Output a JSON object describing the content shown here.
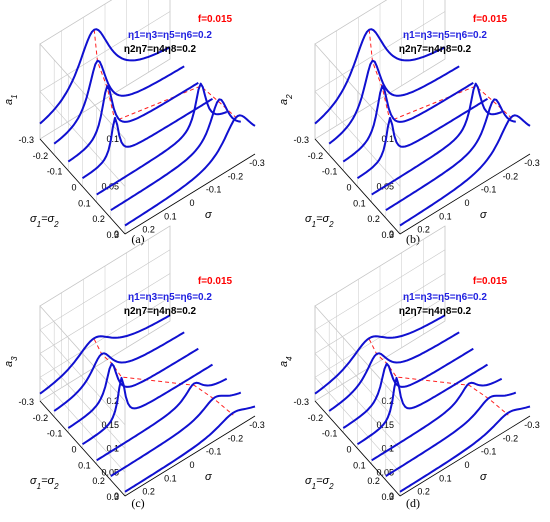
{
  "colors": {
    "curve": "#1010d0",
    "ridge": "#ff2020",
    "grid": "#c8c8c8",
    "ann_f": "#ff0000",
    "ann_eta_odd": "#2020e0",
    "ann_eta_even": "#000000"
  },
  "chart_data": [
    {
      "type": "line",
      "panel_caption": "(a)",
      "zlabel": "a",
      "zlabel_sub": "1",
      "zlim": [
        0,
        0.1
      ],
      "z_ticks": [
        "0",
        "0.05",
        "0.1"
      ],
      "xlabel_parts": [
        "σ",
        "1",
        "=σ",
        "2"
      ],
      "x_ticks": [
        "-0.3",
        "-0.2",
        "-0.1",
        "0",
        "0.1",
        "0.2",
        "0.3"
      ],
      "ylabel": "σ",
      "y_ticks": [
        "-0.3",
        "-0.2",
        "-0.1",
        "0",
        "0.1",
        "0.2"
      ],
      "ann_f": "f=0.015",
      "ann_eta_odd": "η1=η3=η5=η6=0.2",
      "ann_eta_even": "η2η7=η4η8=0.2",
      "series": [
        {
          "sigma12": -0.3,
          "peak_sigma": 0.05,
          "peak_a": 0.08,
          "width": 0.09
        },
        {
          "sigma12": -0.2,
          "peak_sigma": 0.1,
          "peak_a": 0.07,
          "width": 0.05
        },
        {
          "sigma12": -0.1,
          "peak_sigma": 0.12,
          "peak_a": 0.062,
          "width": 0.03
        },
        {
          "sigma12": 0.0,
          "peak_sigma": 0.15,
          "peak_a": 0.048,
          "width": 0.02
        },
        {
          "sigma12": 0.1,
          "peak_sigma": -0.18,
          "peak_a": 0.055,
          "width": 0.03
        },
        {
          "sigma12": 0.2,
          "peak_sigma": -0.2,
          "peak_a": 0.052,
          "width": 0.05
        },
        {
          "sigma12": 0.3,
          "peak_sigma": -0.22,
          "peak_a": 0.048,
          "width": 0.08
        }
      ]
    },
    {
      "type": "line",
      "panel_caption": "(b)",
      "zlabel": "a",
      "zlabel_sub": "2",
      "zlim": [
        0,
        0.1
      ],
      "z_ticks": [
        "0",
        "0.05",
        "0.1"
      ],
      "xlabel_parts": [
        "σ",
        "1",
        "=σ",
        "2"
      ],
      "x_ticks": [
        "-0.3",
        "-0.2",
        "-0.1",
        "0",
        "0.1",
        "0.2",
        "0.3"
      ],
      "ylabel": "σ",
      "y_ticks": [
        "-0.3",
        "-0.2",
        "-0.1",
        "0",
        "0.1",
        "0.2"
      ],
      "ann_f": "f=0.015",
      "ann_eta_odd": "η1=η3=η5=η6=0.2",
      "ann_eta_even": "η2η7=η4η8=0.2",
      "series": [
        {
          "sigma12": -0.3,
          "peak_sigma": 0.05,
          "peak_a": 0.08,
          "width": 0.09
        },
        {
          "sigma12": -0.2,
          "peak_sigma": 0.1,
          "peak_a": 0.07,
          "width": 0.05
        },
        {
          "sigma12": -0.1,
          "peak_sigma": 0.12,
          "peak_a": 0.062,
          "width": 0.03
        },
        {
          "sigma12": 0.0,
          "peak_sigma": 0.15,
          "peak_a": 0.048,
          "width": 0.02
        },
        {
          "sigma12": 0.1,
          "peak_sigma": -0.18,
          "peak_a": 0.055,
          "width": 0.03
        },
        {
          "sigma12": 0.2,
          "peak_sigma": -0.2,
          "peak_a": 0.052,
          "width": 0.05
        },
        {
          "sigma12": 0.3,
          "peak_sigma": -0.22,
          "peak_a": 0.048,
          "width": 0.08
        }
      ]
    },
    {
      "type": "line",
      "panel_caption": "(c)",
      "zlabel": "a",
      "zlabel_sub": "3",
      "zlim": [
        0,
        0.2
      ],
      "z_ticks": [
        "0",
        "0.05",
        "0.1",
        "0.15",
        "0.2"
      ],
      "xlabel_parts": [
        "σ",
        "1",
        "=σ",
        "2"
      ],
      "x_ticks": [
        "-0.3",
        "-0.2",
        "-0.1",
        "0",
        "0.1",
        "0.2",
        "0.3"
      ],
      "ylabel": "σ",
      "y_ticks": [
        "-0.3",
        "-0.2",
        "-0.1",
        "0",
        "0.1",
        "0.2"
      ],
      "ann_f": "f=0.015",
      "ann_eta_odd": "η1=η3=η5=η6=0.2",
      "ann_eta_even": "η2η7=η4η8=0.2",
      "series": [
        {
          "sigma12": -0.3,
          "peak_sigma": 0.05,
          "peak_a": 0.06,
          "width": 0.1
        },
        {
          "sigma12": -0.2,
          "peak_sigma": 0.08,
          "peak_a": 0.07,
          "width": 0.06
        },
        {
          "sigma12": -0.1,
          "peak_sigma": 0.1,
          "peak_a": 0.09,
          "width": 0.03
        },
        {
          "sigma12": 0.0,
          "peak_sigma": 0.12,
          "peak_a": 0.1,
          "width": 0.02
        },
        {
          "sigma12": 0.1,
          "peak_sigma": -0.15,
          "peak_a": 0.04,
          "width": 0.05
        },
        {
          "sigma12": 0.2,
          "peak_sigma": -0.18,
          "peak_a": 0.035,
          "width": 0.07
        },
        {
          "sigma12": 0.3,
          "peak_sigma": -0.2,
          "peak_a": 0.03,
          "width": 0.09
        }
      ]
    },
    {
      "type": "line",
      "panel_caption": "(d)",
      "zlabel": "a",
      "zlabel_sub": "4",
      "zlim": [
        0,
        0.2
      ],
      "z_ticks": [
        "0",
        "0.05",
        "0.1",
        "0.15",
        "0.2"
      ],
      "xlabel_parts": [
        "σ",
        "1",
        "=σ",
        "2"
      ],
      "x_ticks": [
        "-0.3",
        "-0.2",
        "-0.1",
        "0",
        "0.1",
        "0.2",
        "0.3"
      ],
      "ylabel": "σ",
      "y_ticks": [
        "-0.3",
        "-0.2",
        "-0.1",
        "0",
        "0.1",
        "0.2"
      ],
      "ann_f": "f=0.015",
      "ann_eta_odd": "η1=η3=η5=η6=0.2",
      "ann_eta_even": "η2η7=η4η8=0.2",
      "series": [
        {
          "sigma12": -0.3,
          "peak_sigma": 0.05,
          "peak_a": 0.06,
          "width": 0.1
        },
        {
          "sigma12": -0.2,
          "peak_sigma": 0.08,
          "peak_a": 0.07,
          "width": 0.06
        },
        {
          "sigma12": -0.1,
          "peak_sigma": 0.1,
          "peak_a": 0.09,
          "width": 0.03
        },
        {
          "sigma12": 0.0,
          "peak_sigma": 0.12,
          "peak_a": 0.1,
          "width": 0.02
        },
        {
          "sigma12": 0.1,
          "peak_sigma": -0.15,
          "peak_a": 0.04,
          "width": 0.05
        },
        {
          "sigma12": 0.2,
          "peak_sigma": -0.18,
          "peak_a": 0.035,
          "width": 0.07
        },
        {
          "sigma12": 0.3,
          "peak_sigma": -0.2,
          "peak_a": 0.03,
          "width": 0.09
        }
      ]
    }
  ]
}
